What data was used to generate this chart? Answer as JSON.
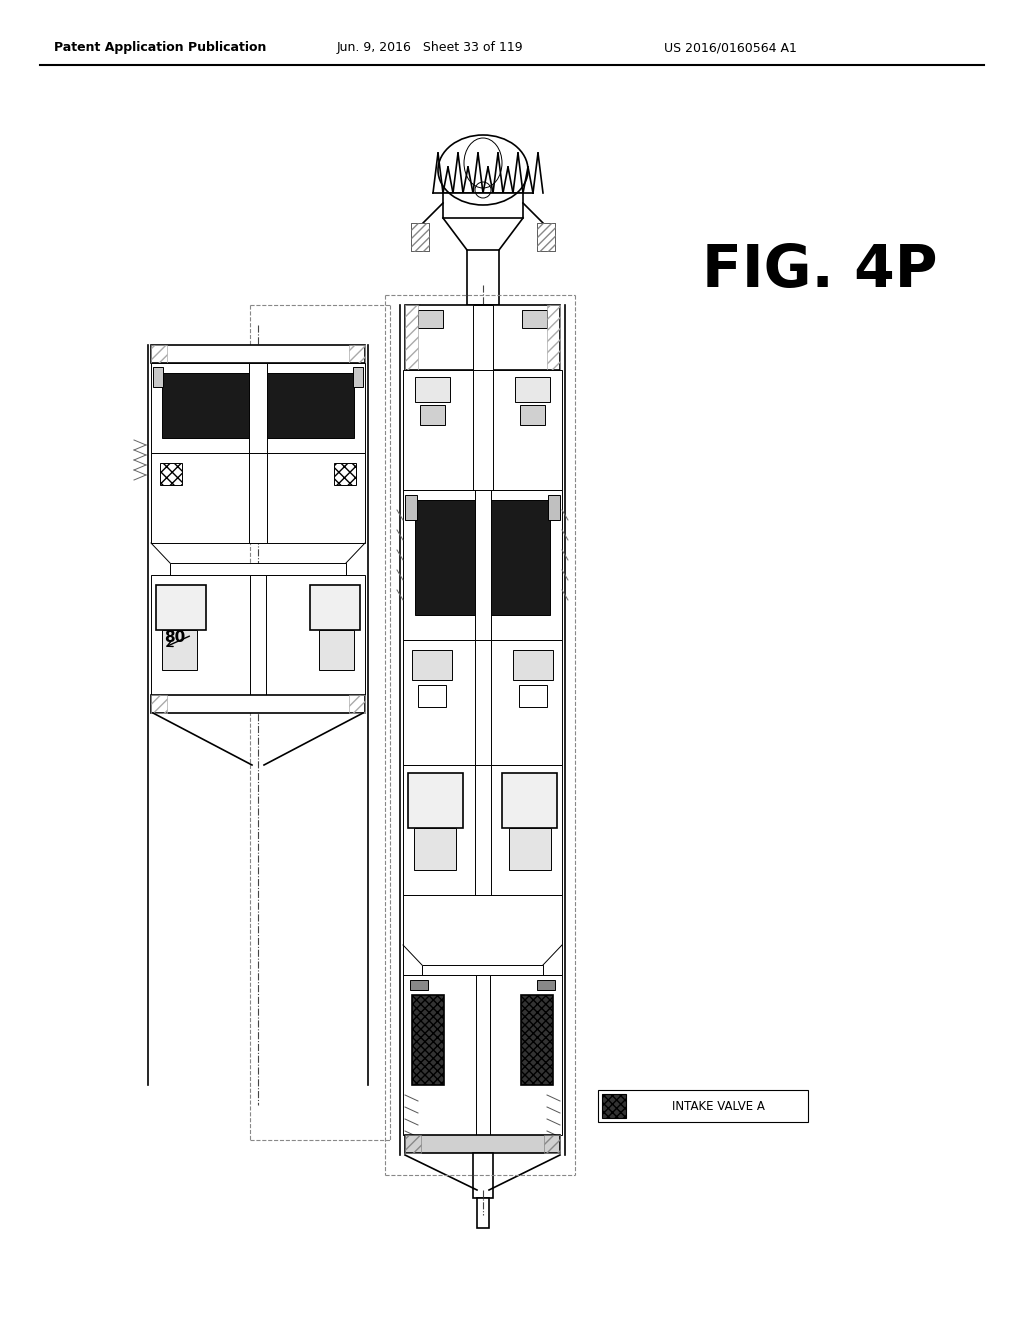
{
  "background_color": "#ffffff",
  "header_left": "Patent Application Publication",
  "header_center": "Jun. 9, 2016   Sheet 33 of 119",
  "header_right": "US 2016/0160564 A1",
  "fig_label": "FIG. 4P",
  "label_80": "80",
  "legend_text": "INTAKE VALVE A",
  "line_color": "#000000",
  "dark_fill": "#1a1a1a",
  "gray_fill": "#888888",
  "light_gray": "#d0d0d0",
  "spring_color": "#555555"
}
